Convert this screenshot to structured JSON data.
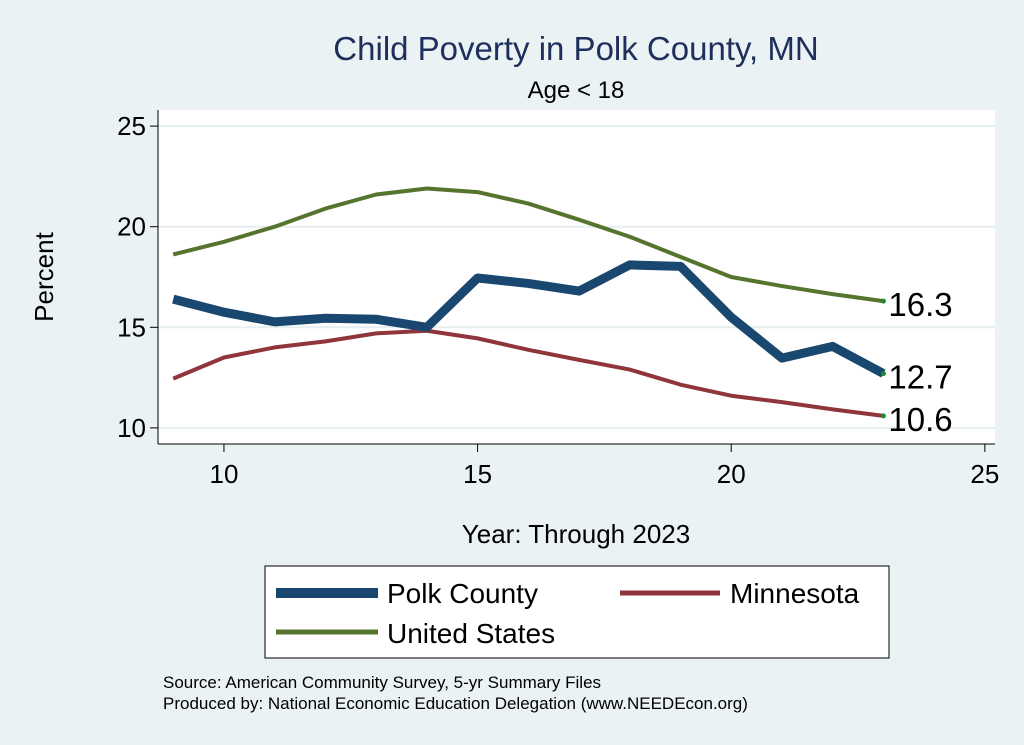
{
  "chart_data": {
    "type": "line",
    "title": "Child Poverty in Polk County, MN",
    "subtitle": "Age < 18",
    "xlabel": "Year: Through 2023",
    "ylabel": "Percent",
    "xlim": [
      8.7,
      25.2
    ],
    "ylim": [
      9.2,
      25.8
    ],
    "xticks": [
      "10",
      "15",
      "20",
      "25"
    ],
    "yticks": [
      "10",
      "15",
      "20",
      "25"
    ],
    "x": [
      9,
      10,
      11,
      12,
      13,
      14,
      15,
      16,
      17,
      18,
      19,
      20,
      21,
      22,
      23
    ],
    "series": [
      {
        "name": "Polk County",
        "color": "#1a476f",
        "values": [
          16.4,
          15.75,
          15.27,
          15.45,
          15.4,
          15.0,
          17.45,
          17.18,
          16.8,
          18.1,
          18.03,
          15.5,
          13.47,
          14.05,
          12.7
        ],
        "end_label": "12.7"
      },
      {
        "name": "Minnesota",
        "color": "#90353b",
        "values": [
          12.45,
          13.5,
          14.0,
          14.3,
          14.7,
          14.83,
          14.45,
          13.88,
          13.38,
          12.9,
          12.15,
          11.6,
          11.28,
          10.92,
          10.6
        ],
        "end_label": "10.6"
      },
      {
        "name": "United States",
        "color": "#55752f",
        "values": [
          18.62,
          19.25,
          20.0,
          20.9,
          21.6,
          21.9,
          21.72,
          21.15,
          20.35,
          19.5,
          18.5,
          17.5,
          17.05,
          16.65,
          16.3
        ],
        "end_label": "16.3"
      }
    ],
    "legend": [
      "Polk County",
      "Minnesota",
      "United States"
    ],
    "grid": true
  },
  "source_lines": [
    "Source: American Community Survey, 5-yr Summary Files",
    "Produced by: National Economic Education Delegation (www.NEEDEcon.org)"
  ]
}
